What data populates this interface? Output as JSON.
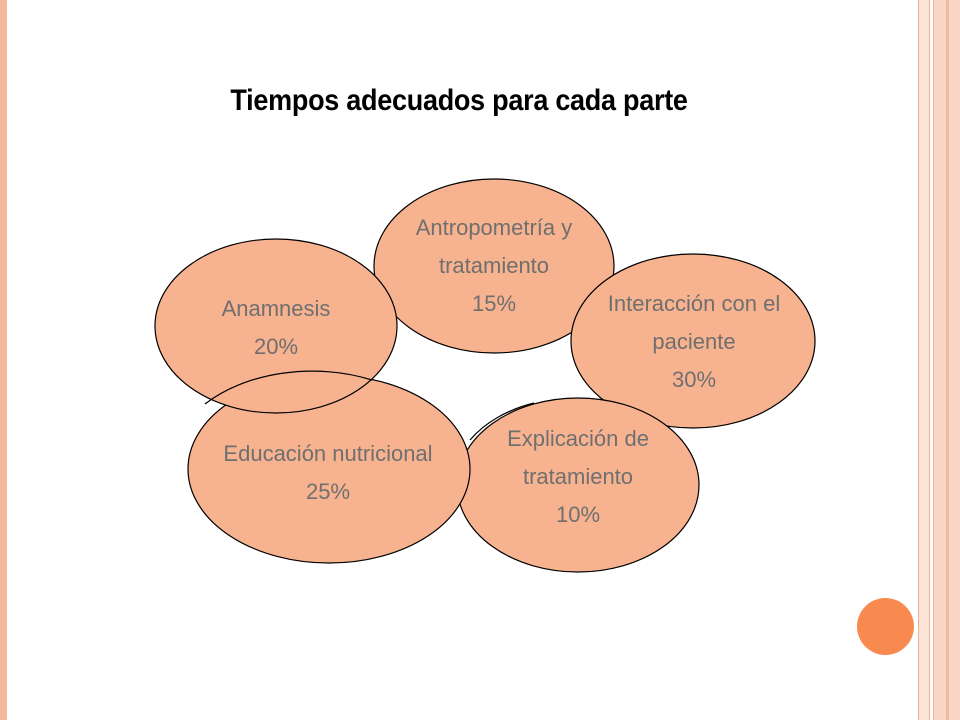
{
  "slide": {
    "title": "Tiempos adecuados para cada parte"
  },
  "colors": {
    "ellipse_fill": "#f7b38f",
    "ellipse_stroke": "#000000",
    "label_text": "#6f6f6f",
    "accent_dot": "#f8894f",
    "border": "#f4b89c"
  },
  "segments": [
    {
      "line1": "Anamnesis",
      "line2": "",
      "percent": "20%"
    },
    {
      "line1": "Antropometría y",
      "line2": "tratamiento",
      "percent": "15%"
    },
    {
      "line1": "Interacción con el",
      "line2": "paciente",
      "percent": "30%"
    },
    {
      "line1": "Educación nutricional",
      "line2": "",
      "percent": "25%"
    },
    {
      "line1": "Explicación de",
      "line2": "tratamiento",
      "percent": "10%"
    }
  ]
}
